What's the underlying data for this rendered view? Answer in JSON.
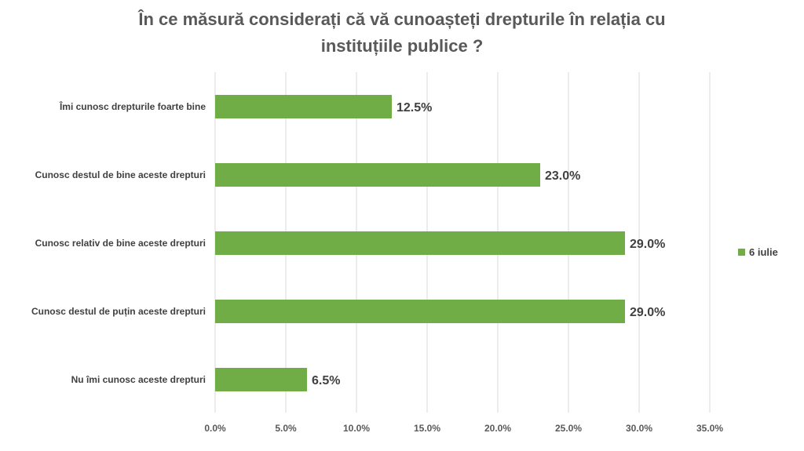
{
  "chart_data": {
    "type": "bar",
    "orientation": "horizontal",
    "title_lines": [
      "În ce măsură considerați că vă cunoașteți drepturile în relația cu",
      "instituțiile publice ?"
    ],
    "categories": [
      "Îmi cunosc drepturile foarte bine",
      "Cunosc destul de bine aceste drepturi",
      "Cunosc relativ de bine aceste drepturi",
      "Cunosc destul de puțin aceste drepturi",
      "Nu îmi cunosc aceste drepturi"
    ],
    "series": [
      {
        "name": "6 iulie",
        "color": "#70ad47",
        "values": [
          12.5,
          23.0,
          29.0,
          29.0,
          6.5
        ]
      }
    ],
    "data_labels": [
      "12.5%",
      "23.0%",
      "29.0%",
      "29.0%",
      "6.5%"
    ],
    "xlim": [
      0,
      35
    ],
    "xticks": [
      "0.0%",
      "5.0%",
      "10.0%",
      "15.0%",
      "20.0%",
      "25.0%",
      "30.0%",
      "35.0%"
    ],
    "grid": true,
    "legend_position": "right"
  }
}
